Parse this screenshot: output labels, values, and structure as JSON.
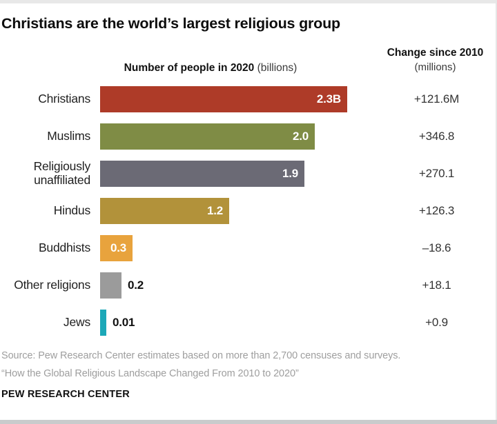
{
  "title": "Christians are the world’s largest religious group",
  "columns": {
    "bar_header_bold": "Number of people in 2020",
    "bar_header_light": " (billions)",
    "change_header_bold": "Change since 2010",
    "change_header_light": "(millions)"
  },
  "chart_data": {
    "type": "bar",
    "orientation": "horizontal",
    "title": "Christians are the world’s largest religious group",
    "xlabel": "Number of people in 2020 (billions)",
    "xlim": [
      0,
      2.3
    ],
    "grid": false,
    "legend": false,
    "categories": [
      "Christians",
      "Muslims",
      "Religiously unaffiliated",
      "Hindus",
      "Buddhists",
      "Other religions",
      "Jews"
    ],
    "series": [
      {
        "name": "Number of people in 2020 (billions)",
        "values": [
          2.3,
          2.0,
          1.9,
          1.2,
          0.3,
          0.2,
          0.01
        ]
      },
      {
        "name": "Change since 2010 (millions)",
        "values": [
          121.6,
          346.8,
          270.1,
          126.3,
          -18.6,
          18.1,
          0.9
        ]
      }
    ],
    "bar_labels": [
      "2.3B",
      "2.0",
      "1.9",
      "1.2",
      "0.3",
      "0.2",
      "0.01"
    ],
    "change_labels": [
      "+121.6M",
      "+346.8",
      "+270.1",
      "+126.3",
      "–18.6",
      "+18.1",
      "+0.9"
    ],
    "bar_colors": [
      "#ae3b28",
      "#7f8c45",
      "#6b6a75",
      "#b2923a",
      "#e8a33d",
      "#9b9b9b",
      "#1ca8b8"
    ]
  },
  "source_lines": [
    "Source: Pew Research Center estimates based on more than 2,700 censuses and surveys.",
    "“How the Global Religious Landscape Changed From 2010 to 2020”"
  ],
  "footer": "PEW RESEARCH CENTER"
}
